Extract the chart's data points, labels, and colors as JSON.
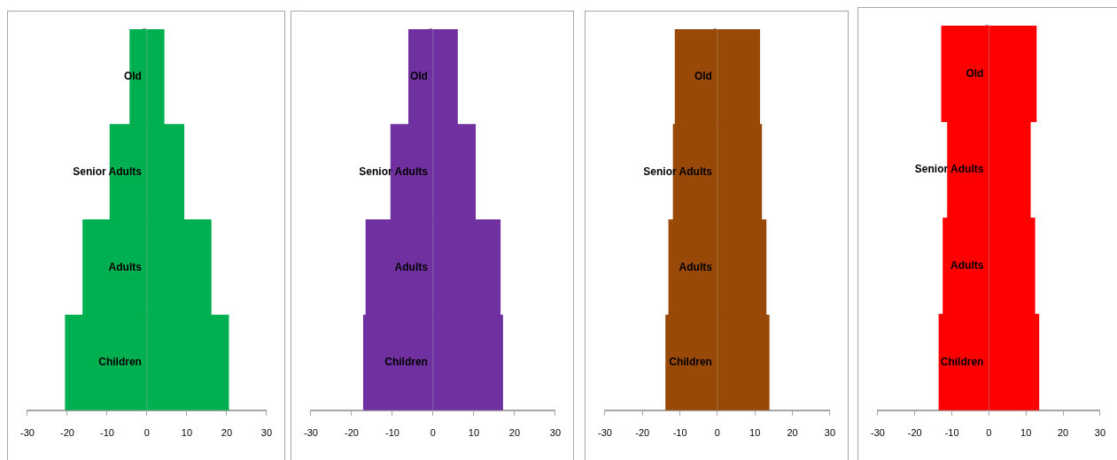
{
  "chart_data": [
    {
      "type": "bar",
      "orientation": "horizontal",
      "stacked": true,
      "categories": [
        "Old",
        "Senior Adults",
        "Adults",
        "Children"
      ],
      "series": [
        {
          "color": "#00b050",
          "values": [
            -4.3,
            -9.3,
            -16.1,
            -20.5
          ]
        },
        {
          "color": "#00b050",
          "values": [
            4.3,
            9.3,
            16.1,
            20.5
          ]
        }
      ],
      "xlim": [
        -30,
        30
      ],
      "xticks": [
        -30,
        -20,
        -10,
        0,
        10,
        20,
        30
      ],
      "grid": false,
      "legend": false
    },
    {
      "type": "bar",
      "orientation": "horizontal",
      "stacked": true,
      "categories": [
        "Old",
        "Senior Adults",
        "Adults",
        "Children"
      ],
      "series": [
        {
          "color": "#7030a0",
          "values": [
            -6,
            -10.4,
            -16.5,
            -17.1
          ]
        },
        {
          "color": "#7030a0",
          "values": [
            6,
            10.4,
            16.5,
            17.1
          ]
        }
      ],
      "xlim": [
        -30,
        30
      ],
      "xticks": [
        -30,
        -20,
        -10,
        0,
        10,
        20,
        30
      ],
      "grid": false,
      "legend": false
    },
    {
      "type": "bar",
      "orientation": "horizontal",
      "stacked": true,
      "categories": [
        "Old",
        "Senior Adults",
        "Adults",
        "Children"
      ],
      "series": [
        {
          "color": "#984807",
          "values": [
            -11.3,
            -11.8,
            -13,
            -13.8
          ]
        },
        {
          "color": "#984807",
          "values": [
            11.3,
            11.8,
            13,
            13.8
          ]
        }
      ],
      "xlim": [
        -30,
        30
      ],
      "xticks": [
        -30,
        -20,
        -10,
        0,
        10,
        20,
        30
      ],
      "grid": false,
      "legend": false
    },
    {
      "type": "bar",
      "orientation": "horizontal",
      "stacked": true,
      "categories": [
        "Old",
        "Senior Adults",
        "Adults",
        "Children"
      ],
      "series": [
        {
          "color": "#ff0000",
          "values": [
            -12.8,
            -11.2,
            -12.4,
            -13.5
          ]
        },
        {
          "color": "#ff0000",
          "values": [
            12.8,
            11.2,
            12.4,
            13.5
          ]
        }
      ],
      "xlim": [
        -30,
        30
      ],
      "xticks": [
        -30,
        -20,
        -10,
        0,
        10,
        20,
        30
      ],
      "grid": false,
      "legend": false
    }
  ]
}
